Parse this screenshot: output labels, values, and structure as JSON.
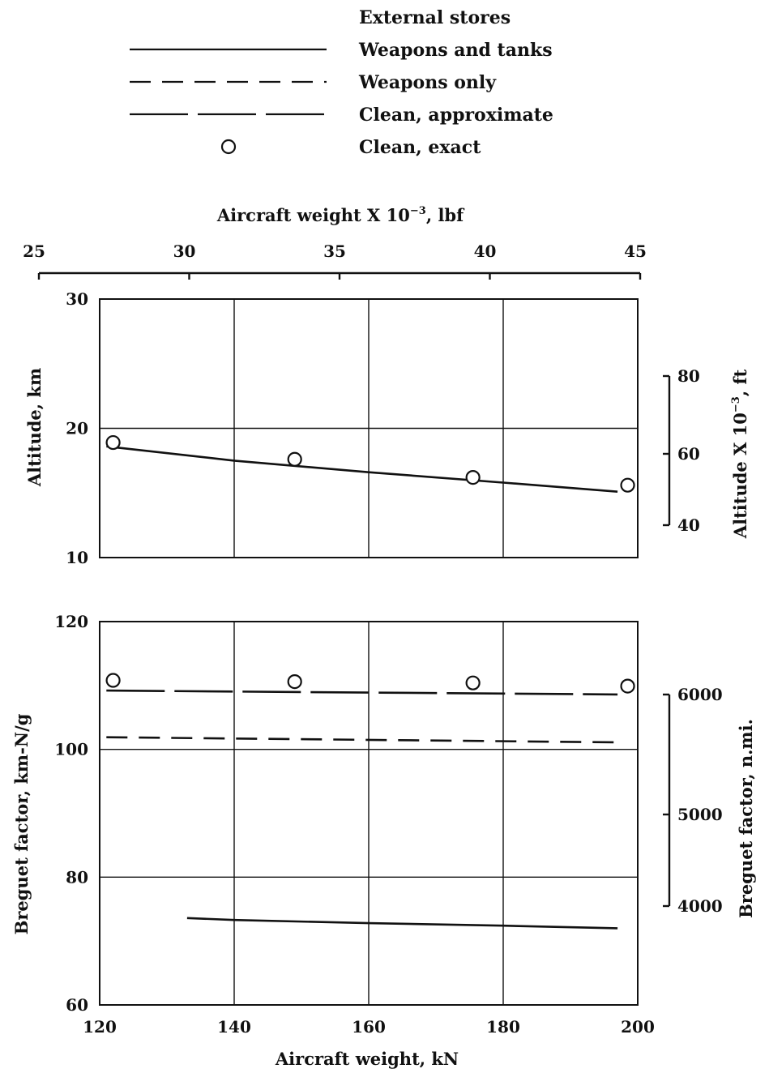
{
  "legend": {
    "title": "External stores",
    "entries": [
      {
        "key": "weapons_tanks",
        "label": "Weapons and tanks",
        "style": "solid"
      },
      {
        "key": "weapons_only",
        "label": "Weapons only",
        "style": "dashed"
      },
      {
        "key": "clean_approx",
        "label": "Clean, approximate",
        "style": "longdash"
      },
      {
        "key": "clean_exact",
        "label": "Clean, exact",
        "style": "circle"
      }
    ]
  },
  "top_axis": {
    "label": "Aircraft weight X 10",
    "label_sup": "−3",
    "label_suffix": ", lbf",
    "ticks": [
      "25",
      "30",
      "35",
      "40",
      "45"
    ]
  },
  "chart_data": [
    {
      "type": "line",
      "xlabel": "Aircraft weight, kN",
      "ylabel": "Altitude, km",
      "xlim": [
        120,
        200
      ],
      "ylim": [
        10,
        30
      ],
      "x_ticks": [
        "120",
        "140",
        "160",
        "180",
        "200"
      ],
      "y_ticks": [
        "10",
        "20",
        "30"
      ],
      "grid": true,
      "right_axis": {
        "label": "Altitude X 10",
        "label_sup": "−3",
        "label_suffix": ", ft",
        "ticks": [
          "40",
          "60",
          "80"
        ]
      },
      "series": [
        {
          "key": "weapons_tanks",
          "style": "solid",
          "x": [
            121,
            140,
            160,
            180,
            197
          ],
          "y": [
            18.6,
            17.5,
            16.6,
            15.8,
            15.1
          ]
        },
        {
          "key": "clean_exact",
          "style": "circle",
          "x": [
            122,
            149,
            175.5,
            198.5
          ],
          "y": [
            18.9,
            17.6,
            16.2,
            15.6
          ]
        }
      ]
    },
    {
      "type": "line",
      "xlabel": "Aircraft weight, kN",
      "ylabel": "Breguet factor, km-N/g",
      "xlim": [
        120,
        200
      ],
      "ylim": [
        60,
        120
      ],
      "x_ticks": [
        "120",
        "140",
        "160",
        "180",
        "200"
      ],
      "y_ticks": [
        "60",
        "80",
        "100",
        "120"
      ],
      "grid": true,
      "right_axis": {
        "label": "Breguet factor, n.mi.",
        "ticks": [
          "4000",
          "5000",
          "6000"
        ]
      },
      "series": [
        {
          "key": "clean_approx",
          "style": "longdash",
          "x": [
            121,
            197
          ],
          "y": [
            109.2,
            108.6
          ]
        },
        {
          "key": "weapons_only",
          "style": "dashed",
          "x": [
            121,
            197
          ],
          "y": [
            101.9,
            101.1
          ]
        },
        {
          "key": "weapons_tanks",
          "style": "solid",
          "x": [
            133,
            140,
            160,
            180,
            197
          ],
          "y": [
            73.6,
            73.3,
            72.8,
            72.4,
            72.0
          ]
        },
        {
          "key": "clean_exact",
          "style": "circle",
          "x": [
            122,
            149,
            175.5,
            198.5
          ],
          "y": [
            110.8,
            110.6,
            110.4,
            109.9
          ]
        }
      ]
    }
  ]
}
